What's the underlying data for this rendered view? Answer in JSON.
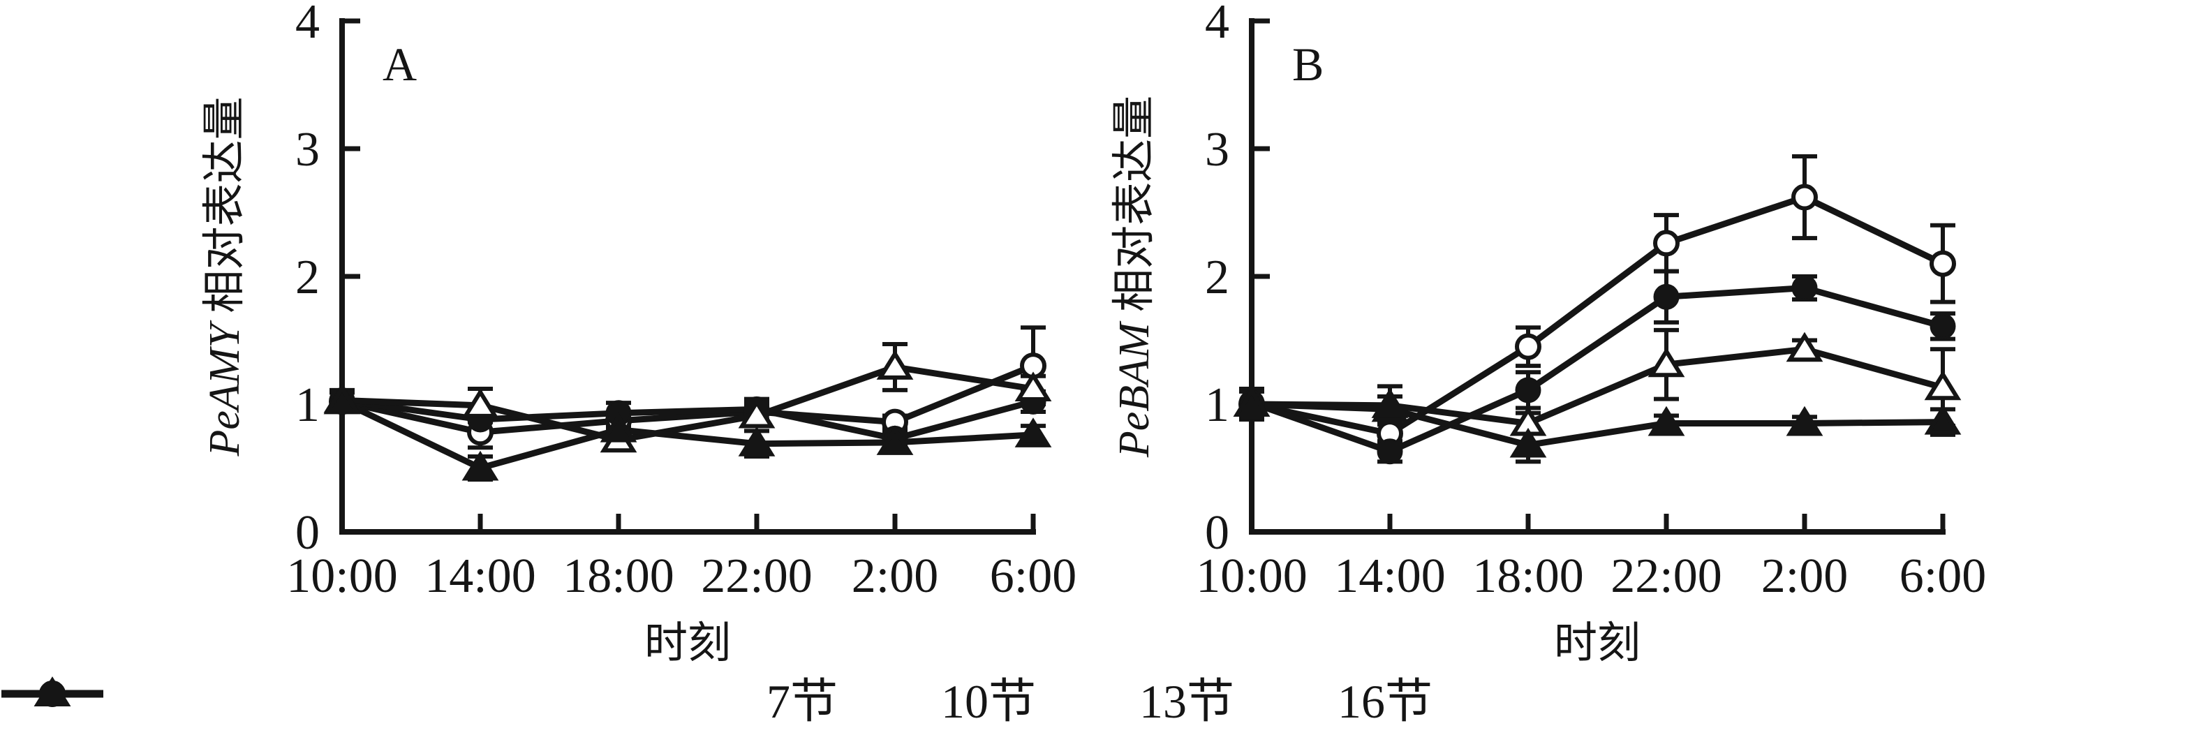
{
  "figure": {
    "background": "#ffffff",
    "ink": "#151515"
  },
  "chart_data": [
    {
      "type": "line",
      "panel_letter": "A",
      "ylabel_gene": "PeAMY",
      "ylabel_rest": " 相对表达量",
      "xlabel": "时刻",
      "ylim": [
        0,
        4
      ],
      "yticks": [
        0,
        1,
        2,
        3,
        4
      ],
      "grid": false,
      "categories": [
        "10:00",
        "14:00",
        "18:00",
        "22:00",
        "2:00",
        "6:00"
      ],
      "series": [
        {
          "name": "7节",
          "marker": "circle-open",
          "values": [
            1.02,
            0.78,
            0.87,
            0.94,
            0.86,
            1.3
          ],
          "errors": [
            0.07,
            0.12,
            0.05,
            0.07,
            0.05,
            0.3
          ]
        },
        {
          "name": "10节",
          "marker": "circle-filled",
          "values": [
            1.03,
            0.88,
            0.93,
            0.96,
            0.73,
            1.02
          ],
          "errors": [
            0.07,
            0.08,
            0.08,
            0.08,
            0.05,
            0.08
          ]
        },
        {
          "name": "13节",
          "marker": "triangle-open",
          "values": [
            1.03,
            0.99,
            0.72,
            0.91,
            1.29,
            1.12
          ],
          "errors": [
            0.08,
            0.13,
            0.07,
            0.08,
            0.18,
            0.1
          ]
        },
        {
          "name": "16节",
          "marker": "triangle-filled",
          "values": [
            1.02,
            0.5,
            0.8,
            0.69,
            0.7,
            0.76
          ],
          "errors": [
            0.08,
            0.09,
            0.05,
            0.1,
            0.07,
            0.07
          ]
        }
      ]
    },
    {
      "type": "line",
      "panel_letter": "B",
      "ylabel_gene": "PeBAM",
      "ylabel_rest": " 相对表达量",
      "xlabel": "时刻",
      "ylim": [
        0,
        4
      ],
      "yticks": [
        0,
        1,
        2,
        3,
        4
      ],
      "grid": false,
      "categories": [
        "10:00",
        "14:00",
        "18:00",
        "22:00",
        "2:00",
        "6:00"
      ],
      "series": [
        {
          "name": "7节",
          "marker": "circle-open",
          "values": [
            1.0,
            0.77,
            1.45,
            2.26,
            2.62,
            2.1
          ],
          "errors": [
            0.1,
            0.09,
            0.15,
            0.22,
            0.32,
            0.3
          ]
        },
        {
          "name": "10节",
          "marker": "circle-filled",
          "values": [
            1.01,
            0.63,
            1.11,
            1.84,
            1.91,
            1.61
          ],
          "errors": [
            0.09,
            0.08,
            0.14,
            0.2,
            0.09,
            0.1
          ]
        },
        {
          "name": "13节",
          "marker": "triangle-open",
          "values": [
            1.0,
            0.99,
            0.85,
            1.31,
            1.43,
            1.13
          ],
          "errors": [
            0.12,
            0.15,
            0.08,
            0.27,
            0.07,
            0.3
          ]
        },
        {
          "name": "16节",
          "marker": "triangle-filled",
          "values": [
            1.0,
            0.96,
            0.68,
            0.85,
            0.85,
            0.86
          ],
          "errors": [
            0.1,
            0.1,
            0.13,
            0.06,
            0.05,
            0.1
          ]
        }
      ]
    }
  ],
  "legend": {
    "position": "bottom-center",
    "items": [
      {
        "label": "7节",
        "marker": "circle-open"
      },
      {
        "label": "10节",
        "marker": "circle-filled"
      },
      {
        "label": "13节",
        "marker": "triangle-open"
      },
      {
        "label": "16节",
        "marker": "triangle-filled"
      }
    ]
  }
}
